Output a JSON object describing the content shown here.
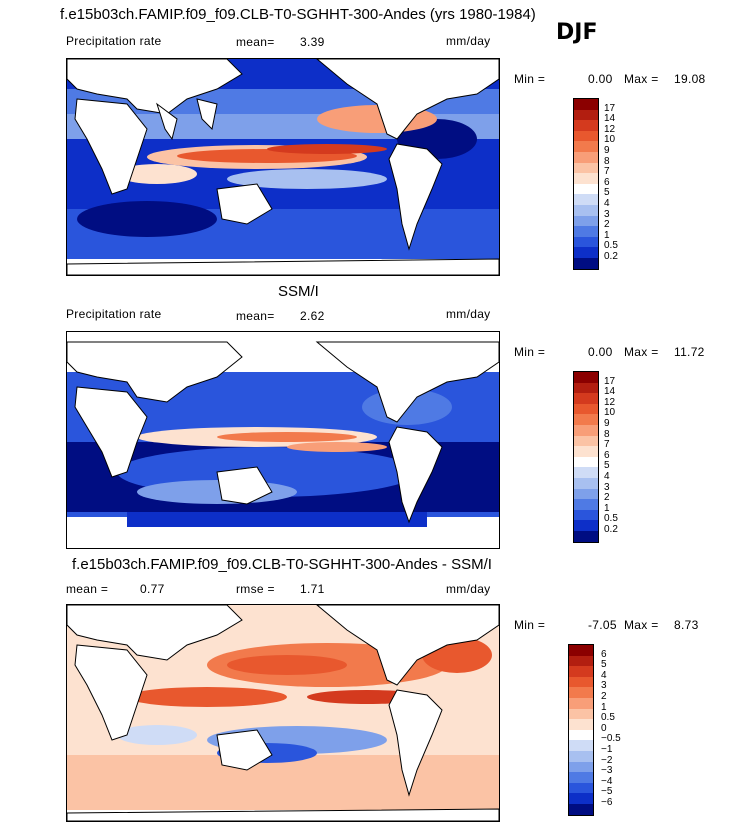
{
  "season": "DJF",
  "panels": [
    {
      "title": "f.e15b03ch.FAMIP.f09_f09.CLB-T0-SGHHT-300-Andes (yrs 1980-1984)",
      "left_label": "Precipitation rate",
      "stat1_label": "mean=",
      "stat1_value": "3.39",
      "units": "mm/day",
      "min_label": "Min =",
      "min_value": "0.00",
      "max_label": "Max =",
      "max_value": "19.08",
      "colorbar_labels": [
        "17",
        "14",
        "12",
        "10",
        "9",
        "8",
        "7",
        "6",
        "5",
        "4",
        "3",
        "2",
        "1",
        "0.5",
        "0.2"
      ],
      "colorbar_colors": [
        "#8b0000",
        "#b21e10",
        "#d43a1e",
        "#e8582e",
        "#f27a4c",
        "#f89e78",
        "#fbc3a5",
        "#fde2d0",
        "#ffffff",
        "#cfdcf6",
        "#a8c0f0",
        "#7ea0ea",
        "#4f7ae4",
        "#2a55dc",
        "#0d2fc8",
        "#000d82"
      ]
    },
    {
      "title": "SSM/I",
      "left_label": "Precipitation rate",
      "stat1_label": "mean=",
      "stat1_value": "2.62",
      "units": "mm/day",
      "min_label": "Min =",
      "min_value": "0.00",
      "max_label": "Max =",
      "max_value": "11.72",
      "colorbar_labels": [
        "17",
        "14",
        "12",
        "10",
        "9",
        "8",
        "7",
        "6",
        "5",
        "4",
        "3",
        "2",
        "1",
        "0.5",
        "0.2"
      ],
      "colorbar_colors": [
        "#8b0000",
        "#b21e10",
        "#d43a1e",
        "#e8582e",
        "#f27a4c",
        "#f89e78",
        "#fbc3a5",
        "#fde2d0",
        "#ffffff",
        "#cfdcf6",
        "#a8c0f0",
        "#7ea0ea",
        "#4f7ae4",
        "#2a55dc",
        "#0d2fc8",
        "#000d82"
      ]
    },
    {
      "title": "f.e15b03ch.FAMIP.f09_f09.CLB-T0-SGHHT-300-Andes - SSM/I",
      "left_label": "mean =",
      "left_value": "0.77",
      "stat1_label": "rmse =",
      "stat1_value": "1.71",
      "units": "mm/day",
      "min_label": "Min =",
      "min_value": "-7.05",
      "max_label": "Max =",
      "max_value": "8.73",
      "colorbar_labels": [
        "6",
        "5",
        "4",
        "3",
        "2",
        "1",
        "0.5",
        "0",
        "−0.5",
        "−1",
        "−2",
        "−3",
        "−4",
        "−5",
        "−6"
      ],
      "colorbar_colors": [
        "#8b0000",
        "#b21e10",
        "#d43a1e",
        "#e8582e",
        "#f27a4c",
        "#f89e78",
        "#fbc3a5",
        "#fde2d0",
        "#ffffff",
        "#cfdcf6",
        "#a8c0f0",
        "#7ea0ea",
        "#4f7ae4",
        "#2a55dc",
        "#0d2fc8",
        "#000d82"
      ]
    }
  ]
}
